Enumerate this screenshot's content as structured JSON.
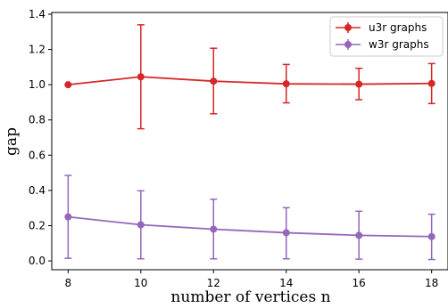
{
  "chart_data": {
    "type": "line",
    "title": "",
    "xlabel": "number of vertices n",
    "ylabel": "gap",
    "x": [
      8,
      10,
      12,
      14,
      16,
      18
    ],
    "xticks": [
      "8",
      "10",
      "12",
      "14",
      "16",
      "18"
    ],
    "yticks": [
      "0.0",
      "0.2",
      "0.4",
      "0.6",
      "0.8",
      "1.0",
      "1.2",
      "1.4"
    ],
    "xlim": [
      7.55,
      18.45
    ],
    "ylim": [
      -0.05,
      1.41
    ],
    "grid": false,
    "legend_position": "upper right",
    "series": [
      {
        "name": "u3r graphs",
        "color": "#d62728",
        "values": [
          1.0,
          1.045,
          1.02,
          1.005,
          1.003,
          1.007
        ],
        "err_low": [
          1.0,
          0.75,
          0.835,
          0.897,
          0.915,
          0.893
        ],
        "err_high": [
          1.0,
          1.34,
          1.207,
          1.115,
          1.093,
          1.12
        ]
      },
      {
        "name": "w3r graphs",
        "color": "#9467bd",
        "values": [
          0.25,
          0.205,
          0.18,
          0.16,
          0.145,
          0.138
        ],
        "err_low": [
          0.015,
          0.012,
          0.012,
          0.012,
          0.01,
          0.008
        ],
        "err_high": [
          0.485,
          0.398,
          0.35,
          0.302,
          0.282,
          0.265
        ]
      }
    ]
  }
}
